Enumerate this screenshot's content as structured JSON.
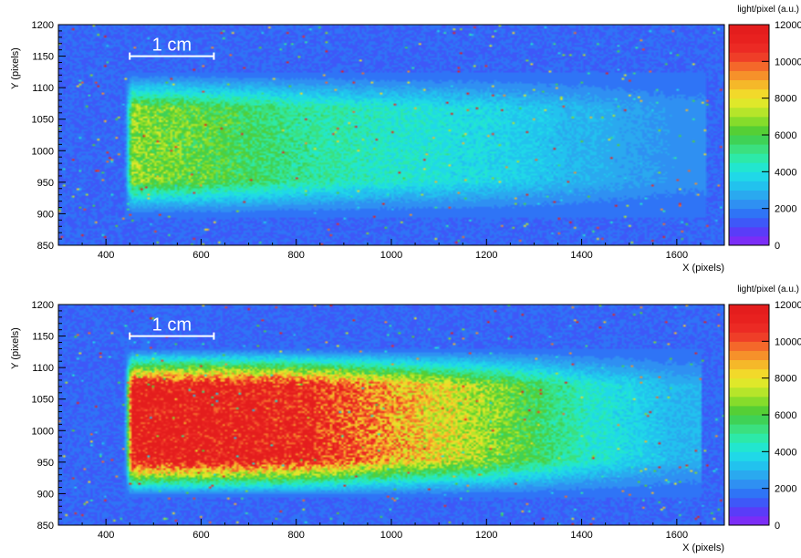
{
  "colorbar": {
    "title": "light/pixel (a.u.)",
    "min": 0,
    "max": 12000,
    "ticks": [
      0,
      2000,
      4000,
      6000,
      8000,
      10000,
      12000
    ],
    "tick_labels": [
      "0",
      "2000",
      "4000",
      "6000",
      "8000",
      "10000",
      "12000"
    ],
    "palette": [
      "#7b2df6",
      "#5a3cf8",
      "#3e58f8",
      "#2f74f6",
      "#2f90f2",
      "#2aa9ef",
      "#22c2ee",
      "#20d8e8",
      "#22e6cf",
      "#2de9a8",
      "#3be07f",
      "#3fd256",
      "#55cf35",
      "#86dc2b",
      "#b6e52a",
      "#dfe82a",
      "#f2d92a",
      "#f5b829",
      "#f6912a",
      "#f4682a",
      "#ef3e28",
      "#ec2a24",
      "#e8211f",
      "#e41d1d"
    ]
  },
  "chart_data": [
    {
      "type": "heatmap",
      "title": "",
      "xlabel": "X (pixels)",
      "ylabel": "Y (pixels)",
      "xlim": [
        300,
        1700
      ],
      "ylim": [
        850,
        1200
      ],
      "x_ticks": [
        400,
        600,
        800,
        1000,
        1200,
        1400,
        1600
      ],
      "y_ticks": [
        850,
        900,
        950,
        1000,
        1050,
        1100,
        1150,
        1200
      ],
      "colorbar_label": "light/pixel (a.u.)",
      "zlim": [
        0,
        12000
      ],
      "background_level": 1500,
      "beam_region": {
        "x": [
          440,
          1660
        ],
        "y": [
          905,
          1115
        ]
      },
      "peak_intensity": 7000,
      "peak_region": "x 450-700, y 950-1060",
      "profile_along_x": {
        "x": [
          450,
          600,
          800,
          1000,
          1200,
          1400,
          1600
        ],
        "intensity": [
          6800,
          6200,
          5000,
          4300,
          3800,
          3000,
          2300
        ]
      },
      "scale_bar": {
        "label": "1 cm",
        "x_start": 450,
        "x_end": 600,
        "y": 1150
      }
    },
    {
      "type": "heatmap",
      "title": "",
      "xlabel": "X (pixels)",
      "ylabel": "Y (pixels)",
      "xlim": [
        300,
        1700
      ],
      "ylim": [
        850,
        1200
      ],
      "x_ticks": [
        400,
        600,
        800,
        1000,
        1200,
        1400,
        1600
      ],
      "y_ticks": [
        850,
        900,
        950,
        1000,
        1050,
        1100,
        1150,
        1200
      ],
      "colorbar_label": "light/pixel (a.u.)",
      "zlim": [
        0,
        12000
      ],
      "background_level": 1500,
      "beam_region": {
        "x": [
          440,
          1650
        ],
        "y": [
          905,
          1120
        ]
      },
      "peak_intensity": 12000,
      "peak_region": "x 450-900, y 950-1050",
      "profile_along_x": {
        "x": [
          450,
          600,
          800,
          1000,
          1200,
          1400,
          1600
        ],
        "intensity": [
          12000,
          12000,
          11500,
          9000,
          7000,
          4500,
          3000
        ]
      },
      "scale_bar": {
        "label": "1 cm",
        "x_start": 450,
        "x_end": 600,
        "y": 1150
      }
    }
  ]
}
